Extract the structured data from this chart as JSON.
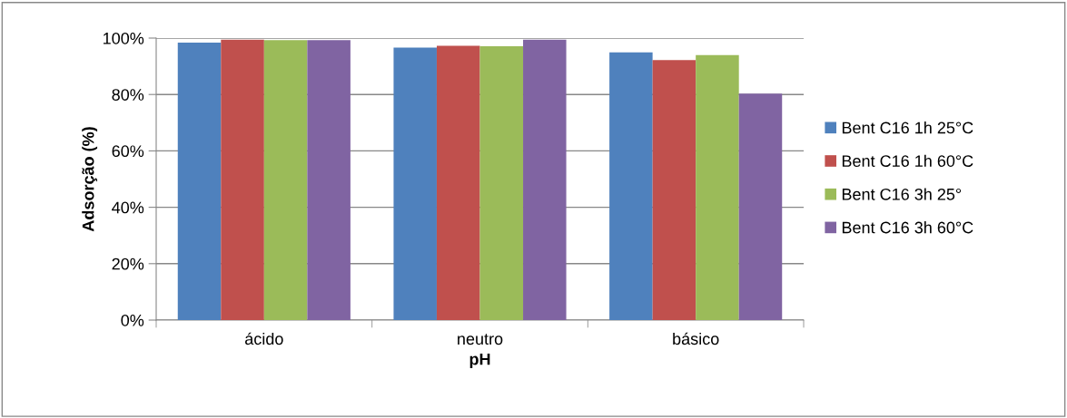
{
  "chart_data": {
    "type": "bar",
    "xlabel": "pH",
    "ylabel": "Adsorção (%)",
    "categories": [
      "ácido",
      "neutro",
      "básico"
    ],
    "series": [
      {
        "name": "Bent C16 1h 25°C",
        "color": "#4f81bd",
        "values": [
          98.4,
          96.6,
          94.9
        ]
      },
      {
        "name": "Bent C16 1h 60°C",
        "color": "#c0504d",
        "values": [
          99.4,
          97.3,
          92.2
        ]
      },
      {
        "name": "Bent C16 3h 25°",
        "color": "#9bbb59",
        "values": [
          99.3,
          97.1,
          94.0
        ]
      },
      {
        "name": "Bent C16 3h 60°C",
        "color": "#8064a2",
        "values": [
          99.3,
          99.4,
          80.3
        ]
      }
    ],
    "ylim": [
      0,
      100
    ],
    "yticks": [
      {
        "value": 0,
        "label": "0%"
      },
      {
        "value": 20,
        "label": "20%"
      },
      {
        "value": 40,
        "label": "40%"
      },
      {
        "value": 60,
        "label": "60%"
      },
      {
        "value": 80,
        "label": "80%"
      },
      {
        "value": 100,
        "label": "100%"
      }
    ],
    "grid": "y",
    "legend": "right"
  }
}
